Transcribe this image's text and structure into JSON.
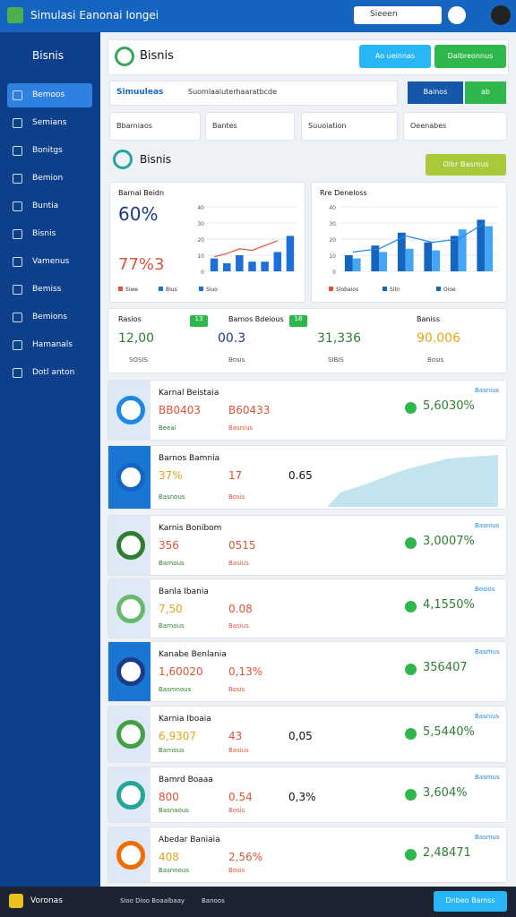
{
  "header": {
    "title": "Simulasi Eanonai Iongei",
    "search": "Sieeen"
  },
  "sidebar": {
    "title": "Bisnis",
    "items": [
      "Bemoos",
      "Semians",
      "Bonitgs",
      "Bemion",
      "Buntia",
      "Bisnis",
      "Vamenus",
      "Bemiss",
      "Bemions",
      "Hamanals",
      "Dotl anton"
    ]
  },
  "panel": {
    "title": "Bisnis",
    "buttons": [
      "Ao ueinnas",
      "Dalbreonnus"
    ]
  },
  "toolbar": {
    "label": "Simuuleas",
    "text": "Suomlaaiuterhaaratbcde",
    "buttons": [
      "Bainos",
      "ab"
    ]
  },
  "filters": [
    "Bbarniaos",
    "Bantes",
    "Suuoiation",
    "Oeenabes"
  ],
  "section": {
    "title": "Bisnis",
    "button": "Olbr Basmus"
  },
  "charts": [
    {
      "type": "bar",
      "title": "Barnal Beidn",
      "stats": [
        "60%",
        "77%3"
      ],
      "legend": [
        "Siwe",
        "Bius",
        "Siuo"
      ],
      "ylim": [
        0,
        40
      ],
      "yticks": [
        0,
        10,
        20,
        30,
        40
      ],
      "series": [
        {
          "color": "#1e6fd9",
          "values": [
            8,
            5,
            10,
            6,
            6,
            12,
            22
          ]
        }
      ],
      "line": {
        "color": "#e0533a",
        "values": [
          9,
          11,
          14,
          13,
          16,
          19,
          null
        ]
      }
    },
    {
      "type": "bar",
      "title": "Rre Deneloss",
      "legend": [
        "Slobaios",
        "Sitn",
        "Oioe"
      ],
      "ylim": [
        0,
        40
      ],
      "yticks": [
        0,
        10,
        20,
        30,
        40
      ],
      "series": [
        {
          "color": "#1565c0",
          "values": [
            10,
            16,
            24,
            18,
            22,
            32
          ]
        },
        {
          "color": "#42a5f5",
          "values": [
            8,
            12,
            14,
            13,
            26,
            28
          ]
        }
      ],
      "line": {
        "color": "#1e88e5",
        "values": [
          12,
          14,
          22,
          18,
          20,
          30
        ]
      }
    }
  ],
  "kpis": [
    {
      "label": "Rasios",
      "value": "12,00",
      "sub": "SOSIS",
      "tag": "13"
    },
    {
      "label": "Bamos Bdeious",
      "value": "00.3",
      "sub": "Bosis",
      "tag": "18"
    },
    {
      "label": "",
      "value": "31,336",
      "sub": "SIBIS",
      "tag": ""
    },
    {
      "label": "Baniss",
      "value": "90.006",
      "sub": "Bosis",
      "tag": ""
    }
  ],
  "rows": [
    {
      "title": "Karnal Beistaia",
      "a": "BB0403",
      "b": "B60433",
      "right": "5,6030%",
      "sa": "Beeai",
      "sb": "Basnius",
      "tag": "Basnius"
    },
    {
      "title": "Barnos Bamnia",
      "a": "37%",
      "b": "17",
      "c": "0.65",
      "sa": "Basnous",
      "sb": "Bosis"
    },
    {
      "title": "Karnis Bonibom",
      "a": "356",
      "b": "0515",
      "right": "3,0007%",
      "sa": "Barnous",
      "sb": "Basius",
      "tag": "Basnius"
    },
    {
      "title": "Banla Ibania",
      "a": "7,50",
      "b": "0.08",
      "right": "4,1550%",
      "sa": "Barnous",
      "sb": "Basius",
      "tag": "Bosios"
    },
    {
      "title": "Kanabe Benlania",
      "a": "1,60020",
      "b": "0,13%",
      "right": "356407",
      "sa": "Basmnous",
      "sb": "Bosis",
      "tag": "Basmus"
    },
    {
      "title": "Karnia Iboaia",
      "a": "6,9307",
      "b": "43",
      "c": "0,05",
      "right": "5,5440%",
      "sa": "Barnous",
      "sb": "Basius",
      "tag": "Basnius"
    },
    {
      "title": "Bamrd Boaaa",
      "a": "800",
      "b": "0.54",
      "c": "0,3%",
      "right": "3,604%",
      "sa": "Basnaous",
      "sb": "Bosis",
      "tag": "Basmus"
    },
    {
      "title": "Abedar Baniaia",
      "a": "408",
      "b": "2,56%",
      "right": "2,48471",
      "sa": "Basnnous",
      "sb": "Bosis",
      "tag": "Basmus"
    }
  ],
  "footer": {
    "brand": "Voronas",
    "text": "Sioo Dioo Boaalbaay",
    "link": "Banoos",
    "button": "Dnbeo Bamss"
  }
}
